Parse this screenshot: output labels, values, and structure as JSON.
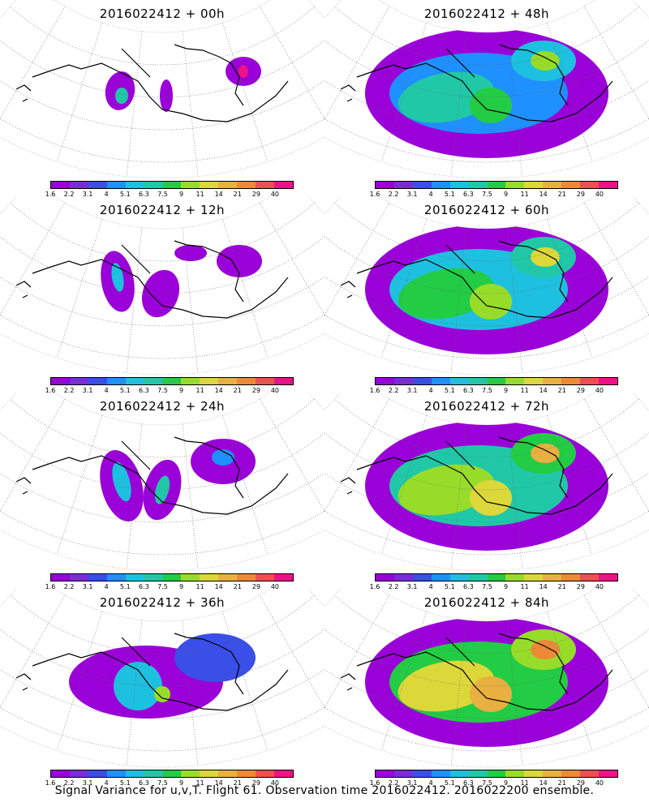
{
  "panels": [
    {
      "title": "2016022412 + 00h",
      "level": 0
    },
    {
      "title": "2016022412 + 48h",
      "level": 4
    },
    {
      "title": "2016022412 + 12h",
      "level": 1
    },
    {
      "title": "2016022412 + 60h",
      "level": 5
    },
    {
      "title": "2016022412 + 24h",
      "level": 2
    },
    {
      "title": "2016022412 + 72h",
      "level": 6
    },
    {
      "title": "2016022412 + 36h",
      "level": 3
    },
    {
      "title": "2016022412 + 84h",
      "level": 7
    }
  ],
  "colorbar": {
    "labels": [
      "1.6",
      "2.2",
      "3.1",
      "4",
      "5.1",
      "6.3",
      "7.5",
      "9",
      "11",
      "14",
      "21",
      "29",
      "40"
    ],
    "colors": [
      "#9a00d8",
      "#7a2cd8",
      "#3a4ee8",
      "#1e90ff",
      "#1ec0e0",
      "#20c8a8",
      "#22cc44",
      "#98dc2a",
      "#dcd83a",
      "#e8b040",
      "#ec8a38",
      "#ec5050",
      "#ee1188"
    ]
  },
  "caption": "Signal Variance for u,v,T. Flight 61. Observation time 2016022412. 2016022200 ensemble."
}
